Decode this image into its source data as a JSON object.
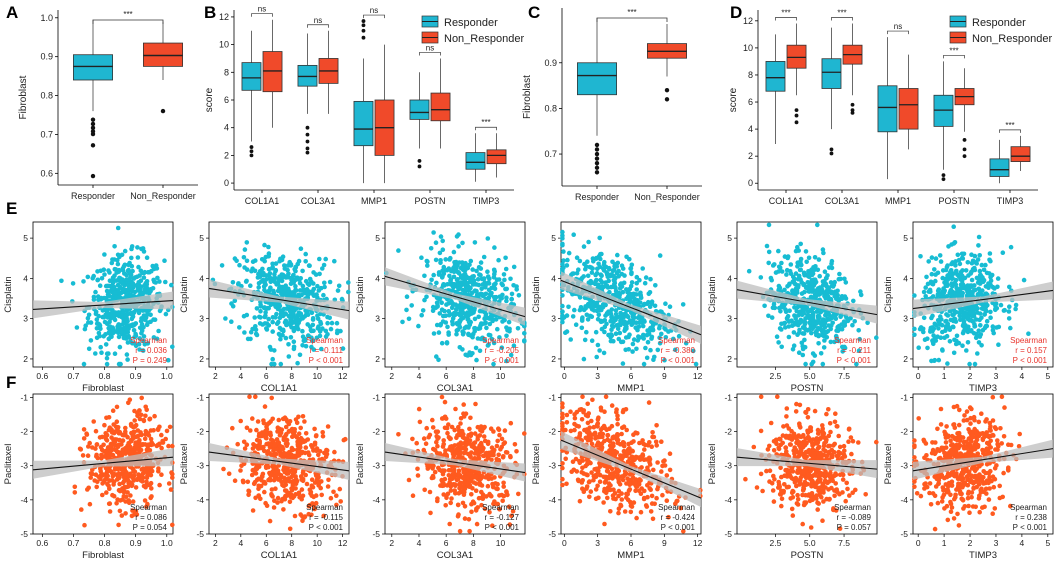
{
  "colors": {
    "responder": "#1fb6d1",
    "non_responder": "#f04a2a",
    "cisplatin_point": "#17bcd3",
    "paclitaxel_point": "#ff5a1f",
    "stat_text_red": "#e8332b",
    "stat_text_black": "#222222",
    "regression_line": "#111111",
    "confidence_band": "#bdbdbd"
  },
  "panel_labels": [
    "A",
    "B",
    "C",
    "D",
    "E",
    "F"
  ],
  "chart_data": [
    {
      "panel": "A",
      "type": "box",
      "ylabel": "Fibroblast",
      "ylim": [
        0.57,
        1.02
      ],
      "yticks": [
        0.6,
        0.7,
        0.8,
        0.9,
        1.0
      ],
      "categories": [
        "Responder",
        "Non_Responder"
      ],
      "boxes": [
        {
          "group": "Responder",
          "q1": 0.84,
          "median": 0.875,
          "q3": 0.905,
          "whisker_low": 0.76,
          "whisker_high": 0.995,
          "outliers": [
            0.738,
            0.727,
            0.717,
            0.708,
            0.701,
            0.672,
            0.593
          ]
        },
        {
          "group": "Non_Responder",
          "q1": 0.875,
          "median": 0.903,
          "q3": 0.935,
          "whisker_low": 0.84,
          "whisker_high": 0.99,
          "outliers": [
            0.76
          ]
        }
      ],
      "significance": [
        {
          "pair": [
            "Responder",
            "Non_Responder"
          ],
          "label": "***"
        }
      ]
    },
    {
      "panel": "B",
      "type": "grouped_box",
      "ylabel": "score",
      "ylim": [
        -0.5,
        12.5
      ],
      "yticks": [
        0,
        2,
        4,
        6,
        8,
        10,
        12
      ],
      "categories": [
        "COL1A1",
        "COL3A1",
        "MMP1",
        "POSTN",
        "TIMP3"
      ],
      "legend": [
        "Responder",
        "Non_Responder"
      ],
      "boxes": {
        "Responder": [
          {
            "q1": 6.7,
            "median": 7.6,
            "q3": 8.7,
            "whisker_low": 3.0,
            "whisker_high": 11.0,
            "outliers": [
              2.6,
              2.3,
              2.0
            ]
          },
          {
            "q1": 7.0,
            "median": 7.7,
            "q3": 8.5,
            "whisker_low": 5.0,
            "whisker_high": 10.8,
            "outliers": [
              4.0,
              3.5,
              3.0,
              2.5,
              2.2
            ]
          },
          {
            "q1": 2.7,
            "median": 3.9,
            "q3": 5.9,
            "whisker_low": 0.0,
            "whisker_high": 9.0,
            "outliers": [
              10.5,
              11.0,
              11.4,
              11.7
            ]
          },
          {
            "q1": 4.6,
            "median": 5.1,
            "q3": 6.0,
            "whisker_low": 2.5,
            "whisker_high": 8.0,
            "outliers": [
              1.6,
              1.2
            ]
          },
          {
            "q1": 1.0,
            "median": 1.5,
            "q3": 2.2,
            "whisker_low": 0.1,
            "whisker_high": 3.6,
            "outliers": []
          }
        ],
        "Non_Responder": [
          {
            "q1": 6.6,
            "median": 8.1,
            "q3": 9.5,
            "whisker_low": 4.0,
            "whisker_high": 11.8,
            "outliers": []
          },
          {
            "q1": 7.2,
            "median": 8.1,
            "q3": 9.0,
            "whisker_low": 5.0,
            "whisker_high": 11.0,
            "outliers": []
          },
          {
            "q1": 2.0,
            "median": 4.0,
            "q3": 6.0,
            "whisker_low": 0.0,
            "whisker_high": 10.0,
            "outliers": []
          },
          {
            "q1": 4.5,
            "median": 5.3,
            "q3": 6.5,
            "whisker_low": 2.5,
            "whisker_high": 9.0,
            "outliers": []
          },
          {
            "q1": 1.4,
            "median": 2.0,
            "q3": 2.4,
            "whisker_low": 0.4,
            "whisker_high": 3.6,
            "outliers": []
          }
        ]
      },
      "significance": [
        "ns",
        "ns",
        "ns",
        "ns",
        "***"
      ]
    },
    {
      "panel": "C",
      "type": "box",
      "ylabel": "Fibroblast",
      "ylim": [
        0.63,
        1.02
      ],
      "yticks": [
        0.7,
        0.8,
        0.9
      ],
      "categories": [
        "Responder",
        "Non_Responder"
      ],
      "boxes": [
        {
          "group": "Responder",
          "q1": 0.83,
          "median": 0.872,
          "q3": 0.9,
          "whisker_low": 0.74,
          "whisker_high": 0.998,
          "outliers": [
            0.72,
            0.71,
            0.7,
            0.69,
            0.68,
            0.67,
            0.66
          ]
        },
        {
          "group": "Non_Responder",
          "q1": 0.91,
          "median": 0.925,
          "q3": 0.942,
          "whisker_low": 0.87,
          "whisker_high": 0.985,
          "outliers": [
            0.84,
            0.82
          ]
        }
      ],
      "significance": [
        {
          "pair": [
            "Responder",
            "Non_Responder"
          ],
          "label": "***"
        }
      ]
    },
    {
      "panel": "D",
      "type": "grouped_box",
      "ylabel": "score",
      "ylim": [
        -0.5,
        12.8
      ],
      "yticks": [
        0,
        2,
        4,
        6,
        8,
        10,
        12
      ],
      "categories": [
        "COL1A1",
        "COL3A1",
        "MMP1",
        "POSTN",
        "TIMP3"
      ],
      "legend": [
        "Responder",
        "Non_Responder"
      ],
      "boxes": {
        "Responder": [
          {
            "q1": 6.8,
            "median": 7.8,
            "q3": 9.0,
            "whisker_low": 2.9,
            "whisker_high": 11.0,
            "outliers": []
          },
          {
            "q1": 7.0,
            "median": 8.2,
            "q3": 9.2,
            "whisker_low": 4.0,
            "whisker_high": 11.5,
            "outliers": [
              2.5,
              2.2
            ]
          },
          {
            "q1": 3.8,
            "median": 5.6,
            "q3": 7.2,
            "whisker_low": 0.3,
            "whisker_high": 10.8,
            "outliers": []
          },
          {
            "q1": 4.2,
            "median": 5.4,
            "q3": 6.5,
            "whisker_low": 1.0,
            "whisker_high": 9.0,
            "outliers": [
              0.6,
              0.3
            ]
          },
          {
            "q1": 0.5,
            "median": 1.0,
            "q3": 1.8,
            "whisker_low": 0.0,
            "whisker_high": 3.2,
            "outliers": []
          }
        ],
        "Non_Responder": [
          {
            "q1": 8.5,
            "median": 9.3,
            "q3": 10.2,
            "whisker_low": 6.5,
            "whisker_high": 11.8,
            "outliers": [
              5.4,
              5.0,
              4.5
            ]
          },
          {
            "q1": 8.8,
            "median": 9.5,
            "q3": 10.2,
            "whisker_low": 6.5,
            "whisker_high": 11.8,
            "outliers": [
              5.8,
              5.4,
              5.2
            ]
          },
          {
            "q1": 4.0,
            "median": 5.8,
            "q3": 7.0,
            "whisker_low": 2.5,
            "whisker_high": 9.5,
            "outliers": []
          },
          {
            "q1": 5.8,
            "median": 6.4,
            "q3": 7.0,
            "whisker_low": 3.8,
            "whisker_high": 8.5,
            "outliers": [
              3.2,
              2.5,
              2.0
            ]
          },
          {
            "q1": 1.6,
            "median": 2.0,
            "q3": 2.7,
            "whisker_low": 0.9,
            "whisker_high": 3.5,
            "outliers": []
          }
        ]
      },
      "significance": [
        "***",
        "***",
        "ns",
        "***",
        "***"
      ]
    },
    {
      "panel": "E",
      "type": "scatter",
      "ylabel": "Cisplatin",
      "ylim": [
        1.8,
        5.4
      ],
      "yticks": [
        2,
        3,
        4,
        5
      ],
      "subplots": [
        {
          "xlabel": "Fibroblast",
          "xlim": [
            0.57,
            1.02
          ],
          "xticks": [
            "0.6",
            "0.7",
            "0.8",
            "0.9",
            "1.0"
          ],
          "r": "0.036",
          "p": "0.249",
          "line": [
            0.57,
            3.23,
            1.02,
            3.45
          ],
          "cluster": [
            0.87,
            0.06
          ]
        },
        {
          "xlabel": "COL1A1",
          "xlim": [
            1.5,
            12.5
          ],
          "xticks": [
            "2",
            "4",
            "6",
            "8",
            "10",
            "12"
          ],
          "r": "-0.111",
          "p": "< 0.001",
          "line": [
            1.5,
            3.75,
            12.5,
            3.2
          ],
          "cluster": [
            7.5,
            1.9
          ]
        },
        {
          "xlabel": "COL3A1",
          "xlim": [
            1.5,
            11.8
          ],
          "xticks": [
            "2",
            "4",
            "6",
            "8",
            "10"
          ],
          "r": "-0.205",
          "p": "< 0.001",
          "line": [
            1.5,
            4.05,
            11.8,
            3.05
          ],
          "cluster": [
            7.6,
            1.7
          ]
        },
        {
          "xlabel": "MMP1",
          "xlim": [
            -0.3,
            12.3
          ],
          "xticks": [
            "0",
            "3",
            "6",
            "9",
            "12"
          ],
          "r": "-0.380",
          "p": "< 0.001",
          "line": [
            -0.3,
            3.95,
            12.3,
            2.6
          ],
          "cluster": [
            4.5,
            2.6
          ]
        },
        {
          "xlabel": "POSTN",
          "xlim": [
            -0.3,
            9.9
          ],
          "xticks": [
            "2.5",
            "5.0",
            "7.5"
          ],
          "tick_values": [
            2.5,
            5.0,
            7.5
          ],
          "r": "-0.211",
          "p": "< 0.001",
          "line": [
            -0.3,
            3.72,
            9.9,
            3.1
          ],
          "cluster": [
            5.0,
            1.5
          ]
        },
        {
          "xlabel": "TIMP3",
          "xlim": [
            -0.2,
            5.2
          ],
          "xticks": [
            "0",
            "1",
            "2",
            "3",
            "4",
            "5"
          ],
          "r": "0.157",
          "p": "< 0.001",
          "line": [
            -0.2,
            3.25,
            5.2,
            3.7
          ],
          "cluster": [
            1.7,
            0.8
          ]
        }
      ],
      "stat_method": "Spearman"
    },
    {
      "panel": "F",
      "type": "scatter",
      "ylabel": "Paclitaxel",
      "ylim": [
        -5.0,
        -0.9
      ],
      "yticks": [
        -5,
        -4,
        -3,
        -2,
        -1
      ],
      "subplots": [
        {
          "xlabel": "Fibroblast",
          "xlim": [
            0.57,
            1.02
          ],
          "xticks": [
            "0.6",
            "0.7",
            "0.8",
            "0.9",
            "1.0"
          ],
          "r": "0.086",
          "p": "0.054",
          "line": [
            0.57,
            -3.12,
            1.02,
            -2.75
          ],
          "cluster": [
            0.87,
            0.06
          ]
        },
        {
          "xlabel": "COL1A1",
          "xlim": [
            1.5,
            12.5
          ],
          "xticks": [
            "2",
            "4",
            "6",
            "8",
            "10",
            "12"
          ],
          "r": "-0.115",
          "p": "< 0.001",
          "line": [
            1.5,
            -2.6,
            12.5,
            -3.15
          ],
          "cluster": [
            7.5,
            1.9
          ]
        },
        {
          "xlabel": "COL3A1",
          "xlim": [
            1.5,
            11.8
          ],
          "xticks": [
            "2",
            "4",
            "6",
            "8",
            "10"
          ],
          "r": "-0.127",
          "p": "< 0.001",
          "line": [
            1.5,
            -2.6,
            11.8,
            -3.2
          ],
          "cluster": [
            7.6,
            1.7
          ]
        },
        {
          "xlabel": "MMP1",
          "xlim": [
            -0.3,
            12.3
          ],
          "xticks": [
            "0",
            "3",
            "6",
            "9",
            "12"
          ],
          "r": "-0.424",
          "p": "< 0.001",
          "line": [
            -0.3,
            -2.25,
            12.3,
            -3.95
          ],
          "cluster": [
            4.5,
            2.6
          ]
        },
        {
          "xlabel": "POSTN",
          "xlim": [
            -0.3,
            9.9
          ],
          "xticks": [
            "2.5",
            "5.0",
            "7.5"
          ],
          "tick_values": [
            2.5,
            5.0,
            7.5
          ],
          "r": "-0.089",
          "p": "0.057",
          "line": [
            -0.3,
            -2.75,
            9.9,
            -3.1
          ],
          "cluster": [
            5.0,
            1.5
          ]
        },
        {
          "xlabel": "TIMP3",
          "xlim": [
            -0.2,
            5.2
          ],
          "xticks": [
            "0",
            "1",
            "2",
            "3",
            "4",
            "5"
          ],
          "r": "0.238",
          "p": "< 0.001",
          "line": [
            -0.2,
            -3.15,
            5.2,
            -2.5
          ],
          "cluster": [
            1.7,
            0.8
          ]
        }
      ],
      "stat_method": "Spearman"
    }
  ]
}
